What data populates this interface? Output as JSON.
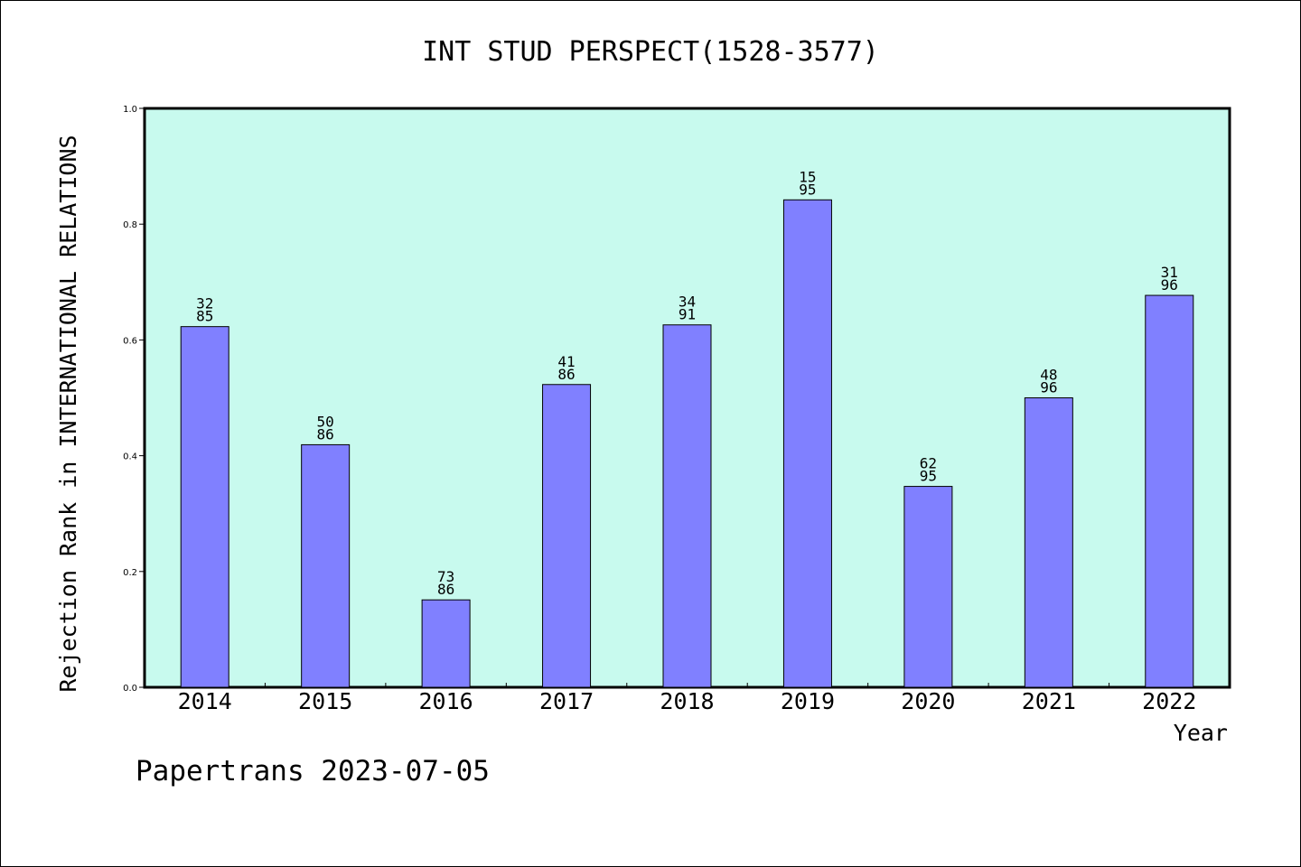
{
  "chart_data": {
    "type": "bar",
    "title": "INT STUD PERSPECT(1528-3577)",
    "xlabel": "Year",
    "ylabel": "Rejection Rank in INTERNATIONAL RELATIONS",
    "categories": [
      "2014",
      "2015",
      "2016",
      "2017",
      "2018",
      "2019",
      "2020",
      "2021",
      "2022"
    ],
    "values": [
      0.623,
      0.419,
      0.151,
      0.523,
      0.626,
      0.842,
      0.347,
      0.5,
      0.677
    ],
    "bar_labels": [
      [
        "32",
        "85"
      ],
      [
        "50",
        "86"
      ],
      [
        "73",
        "86"
      ],
      [
        "41",
        "86"
      ],
      [
        "34",
        "91"
      ],
      [
        "15",
        "95"
      ],
      [
        "62",
        "95"
      ],
      [
        "48",
        "96"
      ],
      [
        "31",
        "96"
      ]
    ],
    "ylim": [
      0.0,
      1.0
    ],
    "yticks": [
      "0.0",
      "0.2",
      "0.4",
      "0.6",
      "0.8",
      "1.0"
    ],
    "grid": false,
    "colors": {
      "plot_background": "#c8faee",
      "bar_fill": "#8080ff",
      "bar_stroke": "#000000"
    }
  },
  "footer": {
    "text": "Papertrans 2023-07-05"
  }
}
